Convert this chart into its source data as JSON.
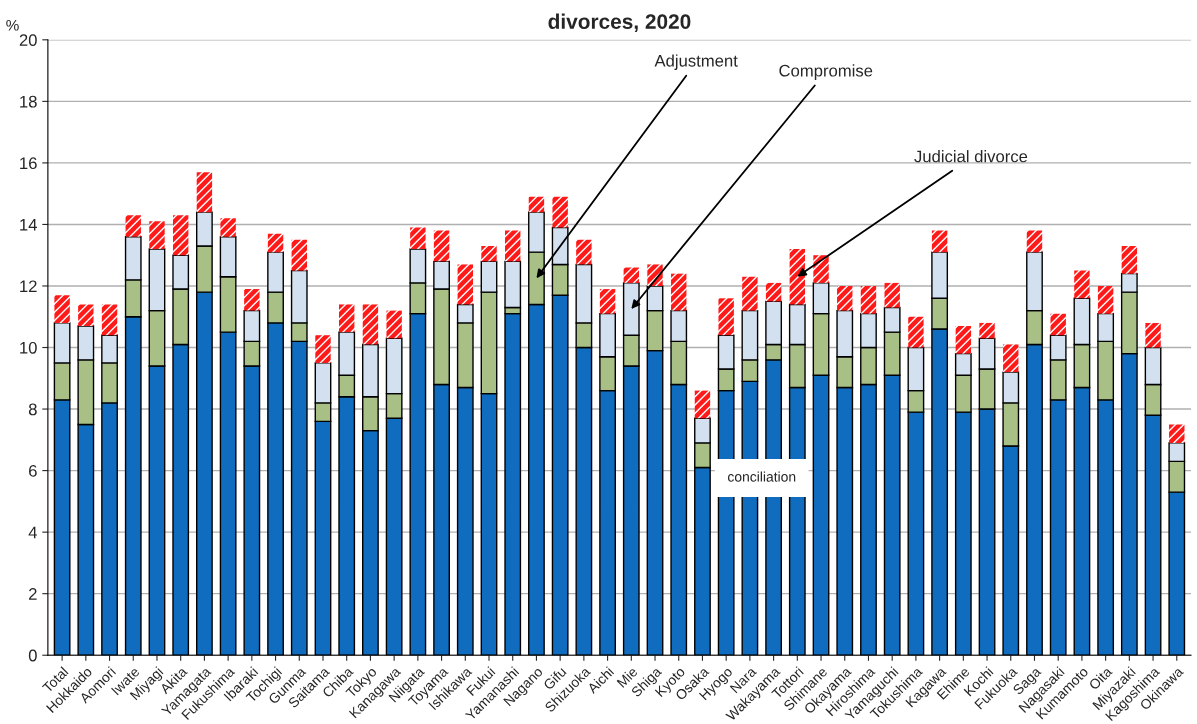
{
  "chart_data": {
    "type": "bar",
    "stacked": true,
    "title": "divorces, 2020",
    "ylabel": "%",
    "categories": [
      "Total",
      "Hokkaido",
      "Aomori",
      "Iwate",
      "Miyagi",
      "Akita",
      "Yamagata",
      "Fukushima",
      "Ibaraki",
      "Tochigi",
      "Gunma",
      "Saitama",
      "Chiba",
      "Tokyo",
      "Kanagawa",
      "Niigata",
      "Toyama",
      "Ishikawa",
      "Fukui",
      "Yamanashi",
      "Nagano",
      "Gifu",
      "Shizuoka",
      "Aichi",
      "Mie",
      "Shiga",
      "Kyoto",
      "Osaka",
      "Hyogo",
      "Nara",
      "Wakayama",
      "Tottori",
      "Shimane",
      "Okayama",
      "Hiroshima",
      "Yamaguchi",
      "Tokushima",
      "Kagawa",
      "Ehime",
      "Kochi",
      "Fukuoka",
      "Saga",
      "Nagasaki",
      "Kumamoto",
      "Oita",
      "Miyazaki",
      "Kagoshima",
      "Okinawa"
    ],
    "series": [
      {
        "name": "conciliation",
        "color": "#0f6cbf",
        "values": [
          8.3,
          7.5,
          8.2,
          11.0,
          9.4,
          10.1,
          11.8,
          10.5,
          9.4,
          10.8,
          10.2,
          7.6,
          8.4,
          7.3,
          7.7,
          11.1,
          8.8,
          8.7,
          8.5,
          11.1,
          11.4,
          11.7,
          10.0,
          8.6,
          9.4,
          9.9,
          8.8,
          6.1,
          8.6,
          8.9,
          9.6,
          8.7,
          9.1,
          8.7,
          8.8,
          9.1,
          7.9,
          10.6,
          7.9,
          8.0,
          6.8,
          10.1,
          8.3,
          8.7,
          8.3,
          9.8,
          7.8,
          5.3
        ]
      },
      {
        "name": "Adjustment",
        "color": "#a8bf86",
        "values": [
          1.2,
          2.1,
          1.3,
          1.2,
          1.8,
          1.8,
          1.5,
          1.8,
          0.8,
          1.0,
          0.6,
          0.6,
          0.7,
          1.1,
          0.8,
          1.0,
          3.1,
          2.1,
          3.3,
          0.2,
          1.7,
          1.0,
          0.8,
          1.1,
          1.0,
          1.3,
          1.4,
          0.8,
          0.7,
          0.7,
          0.5,
          1.4,
          2.0,
          1.0,
          1.2,
          1.4,
          0.7,
          1.0,
          1.2,
          1.3,
          1.4,
          1.1,
          1.3,
          1.4,
          1.9,
          2.0,
          1.0,
          1.0
        ]
      },
      {
        "name": "Compromise",
        "color": "#d3e0ef",
        "values": [
          1.3,
          1.1,
          0.9,
          1.4,
          2.0,
          1.1,
          1.1,
          1.3,
          1.0,
          1.3,
          1.7,
          1.3,
          1.4,
          1.7,
          1.8,
          1.1,
          0.9,
          0.6,
          1.0,
          1.5,
          1.3,
          1.2,
          1.9,
          1.4,
          1.7,
          0.8,
          1.0,
          0.8,
          1.1,
          1.6,
          1.4,
          1.3,
          1.0,
          1.5,
          1.1,
          0.8,
          1.4,
          1.5,
          0.7,
          1.0,
          1.0,
          1.9,
          0.8,
          1.5,
          0.9,
          0.6,
          1.2,
          0.6
        ]
      },
      {
        "name": "Judicial divorce",
        "color": "#ff1a1a",
        "values": [
          0.9,
          0.7,
          1.0,
          0.7,
          0.9,
          1.3,
          1.3,
          0.6,
          0.7,
          0.6,
          1.0,
          0.9,
          0.9,
          1.3,
          0.9,
          0.7,
          1.0,
          1.3,
          0.5,
          1.0,
          0.5,
          1.0,
          0.8,
          0.8,
          0.5,
          0.7,
          1.2,
          0.9,
          1.2,
          1.1,
          0.6,
          1.8,
          0.9,
          0.8,
          0.9,
          0.8,
          1.0,
          0.7,
          0.9,
          0.5,
          0.9,
          0.7,
          0.7,
          0.9,
          0.9,
          0.9,
          0.8,
          0.6
        ]
      }
    ],
    "ylim": [
      0,
      20
    ],
    "yticks": [
      0,
      2,
      4,
      6,
      8,
      10,
      12,
      14,
      16,
      18,
      20
    ],
    "grid": "y"
  }
}
